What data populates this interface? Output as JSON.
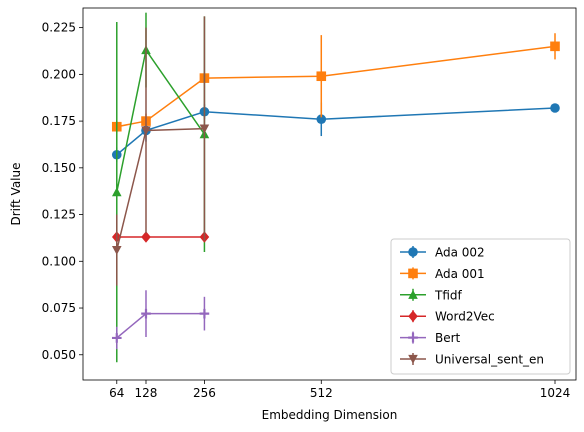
{
  "chart_data": {
    "type": "line",
    "title": "",
    "xlabel": "Embedding Dimension",
    "ylabel": "Drift Value",
    "xlim": [
      -10,
      1070
    ],
    "ylim": [
      0.0365,
      0.2355
    ],
    "x_ticks": [
      64,
      128,
      256,
      512,
      1024
    ],
    "y_ticks": [
      0.05,
      0.075,
      0.1,
      0.125,
      0.15,
      0.175,
      0.2,
      0.225
    ],
    "y_tick_labels": [
      "0.050",
      "0.075",
      "0.100",
      "0.125",
      "0.150",
      "0.175",
      "0.200",
      "0.225"
    ],
    "grid": false,
    "legend_position": "lower-right",
    "series": [
      {
        "name": "Ada 002",
        "color": "#1f77b4",
        "marker": "circle",
        "x": [
          64,
          128,
          256,
          512,
          1024
        ],
        "y": [
          0.157,
          0.17,
          0.18,
          0.176,
          0.182
        ],
        "err": [
          0.004,
          0.006,
          0.004,
          0.009,
          0.002
        ]
      },
      {
        "name": "Ada 001",
        "color": "#ff7f0e",
        "marker": "square",
        "x": [
          64,
          128,
          256,
          512,
          1024
        ],
        "y": [
          0.172,
          0.175,
          0.198,
          0.199,
          0.215
        ],
        "err": [
          0.003,
          0.004,
          0.002,
          0.022,
          0.007
        ]
      },
      {
        "name": "Tfidf",
        "color": "#2ca02c",
        "marker": "triangle",
        "x": [
          64,
          128,
          256
        ],
        "y": [
          0.137,
          0.213,
          0.168
        ],
        "err": [
          0.091,
          0.02,
          0.063
        ]
      },
      {
        "name": "Word2Vec",
        "color": "#d62728",
        "marker": "diamond",
        "x": [
          64,
          128,
          256
        ],
        "y": [
          0.113,
          0.113,
          0.113
        ],
        "err": [
          0.0015,
          0.0015,
          0.0015
        ]
      },
      {
        "name": "Bert",
        "color": "#9467bd",
        "marker": "plus",
        "x": [
          64,
          128,
          256
        ],
        "y": [
          0.059,
          0.072,
          0.072
        ],
        "err": [
          0.006,
          0.0125,
          0.009
        ]
      },
      {
        "name": "Universal_sent_en",
        "color": "#8c564b",
        "marker": "tri_down",
        "x": [
          64,
          128,
          256
        ],
        "y": [
          0.106,
          0.17,
          0.171
        ],
        "err": [
          0.019,
          0.055,
          0.06
        ]
      }
    ]
  }
}
